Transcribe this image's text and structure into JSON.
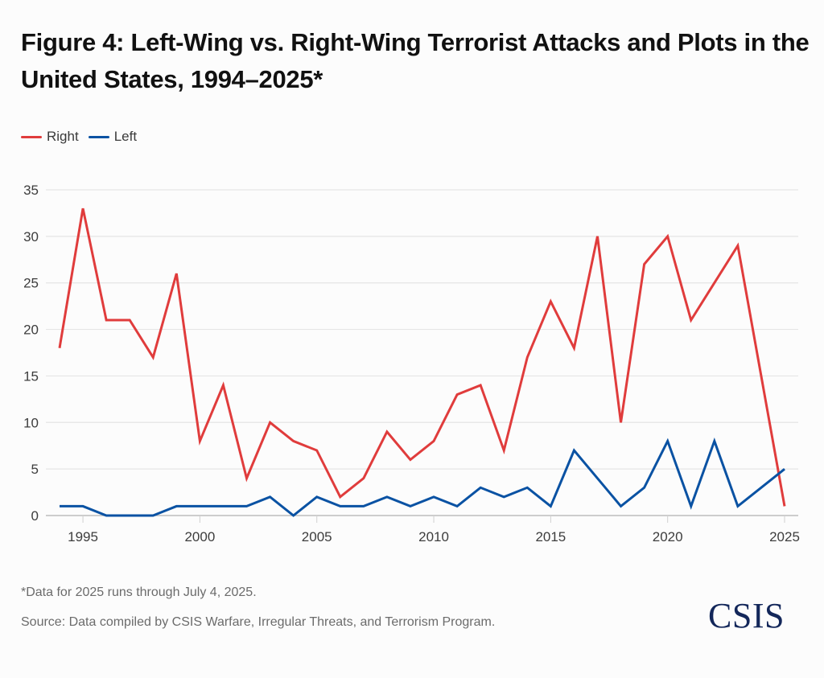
{
  "header": {
    "title": "Figure 4: Left-Wing vs. Right-Wing Terrorist Attacks and Plots in the United States, 1994–2025*"
  },
  "legend": {
    "items": [
      {
        "label": "Right",
        "color": "#e03c3c"
      },
      {
        "label": "Left",
        "color": "#0a52a3"
      }
    ]
  },
  "footer": {
    "footnote": "*Data for 2025 runs through July 4, 2025.",
    "source": "Source: Data compiled by CSIS Warfare, Irregular Threats, and Terrorism Program.",
    "logo": "CSIS",
    "logo_color": "#13275a"
  },
  "chart_data": {
    "type": "line",
    "title": "Figure 4: Left-Wing vs. Right-Wing Terrorist Attacks and Plots in the United States, 1994–2025*",
    "xlabel": "",
    "ylabel": "",
    "x": [
      1994,
      1995,
      1996,
      1997,
      1998,
      1999,
      2000,
      2001,
      2002,
      2003,
      2004,
      2005,
      2006,
      2007,
      2008,
      2009,
      2010,
      2011,
      2012,
      2013,
      2014,
      2015,
      2016,
      2017,
      2018,
      2019,
      2020,
      2021,
      2022,
      2023,
      2024,
      2025
    ],
    "series": [
      {
        "name": "Right",
        "color": "#e03c3c",
        "values": [
          18,
          33,
          21,
          21,
          17,
          26,
          8,
          14,
          4,
          10,
          8,
          7,
          2,
          4,
          9,
          6,
          8,
          13,
          14,
          7,
          17,
          23,
          18,
          30,
          10,
          27,
          30,
          21,
          25,
          29,
          15,
          1
        ]
      },
      {
        "name": "Left",
        "color": "#0a52a3",
        "values": [
          1,
          1,
          0,
          0,
          0,
          1,
          1,
          1,
          1,
          2,
          0,
          2,
          1,
          1,
          2,
          1,
          2,
          1,
          3,
          2,
          3,
          1,
          7,
          4,
          1,
          3,
          8,
          1,
          8,
          1,
          3,
          5
        ]
      }
    ],
    "xlim": [
      1994,
      2025
    ],
    "ylim": [
      0,
      35
    ],
    "yticks": [
      0,
      5,
      10,
      15,
      20,
      25,
      30,
      35
    ],
    "xticks": [
      1995,
      2000,
      2005,
      2010,
      2015,
      2020,
      2025
    ],
    "grid": true,
    "legend_position": "top-left",
    "gridline_color": "#e5e5e5",
    "axis_color": "#bdbdbd"
  }
}
